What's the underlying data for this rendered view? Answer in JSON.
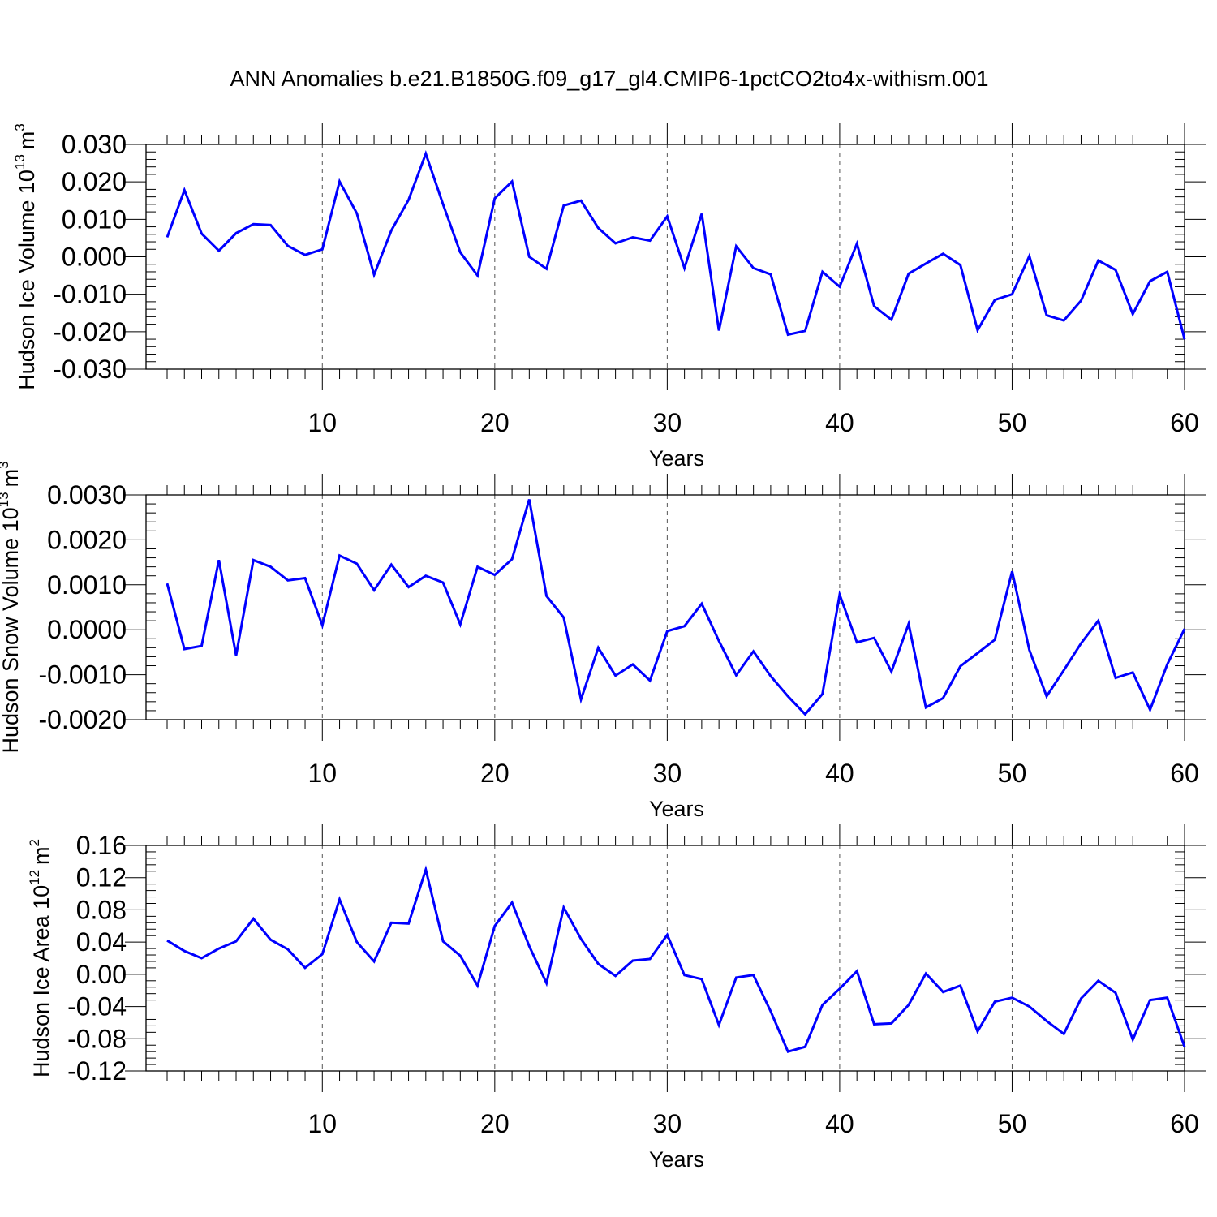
{
  "title": "ANN Anomalies b.e21.B1850G.f09_g17_gl4.CMIP6-1pctCO2to4x-withism.001",
  "style": {
    "line_color": "#0000ff",
    "axis_color": "#000000",
    "grid_color": "#555555"
  },
  "chart_data": [
    {
      "type": "line",
      "ylabel_main": "Hudson Ice Volume 10",
      "ylabel_exp": "13",
      "ylabel_unit": "m",
      "ylabel_unit_exp": "3",
      "xlabel": "Years",
      "xlim": [
        1,
        60
      ],
      "ylim": [
        -0.03,
        0.03
      ],
      "x_ticks": [
        10,
        20,
        30,
        40,
        50,
        60
      ],
      "x_tick_labels": [
        "10",
        "20",
        "30",
        "40",
        "50",
        "60"
      ],
      "y_ticks": [
        -0.03,
        -0.02,
        -0.01,
        0.0,
        0.01,
        0.02,
        0.03
      ],
      "y_tick_labels": [
        "-0.030",
        "-0.020",
        "-0.010",
        "0.000",
        "0.010",
        "0.020",
        "0.030"
      ],
      "grid": "vertical dashed at major x ticks",
      "series": [
        {
          "x": [
            1,
            2,
            3,
            4,
            5,
            6,
            7,
            8,
            9,
            10,
            11,
            12,
            13,
            14,
            15,
            16,
            17,
            18,
            19,
            20,
            21,
            22,
            23,
            24,
            25,
            26,
            27,
            28,
            29,
            30,
            31,
            32,
            33,
            34,
            35,
            36,
            37,
            38,
            39,
            40,
            41,
            42,
            43,
            44,
            45,
            46,
            47,
            48,
            49,
            50,
            51,
            52,
            53,
            54,
            55,
            56,
            57,
            58,
            59,
            60
          ],
          "values": [
            0.0052,
            0.0178,
            0.0062,
            0.0016,
            0.0063,
            0.0087,
            0.0085,
            0.0029,
            0.0005,
            0.002,
            0.0201,
            0.0116,
            -0.0048,
            0.007,
            0.0152,
            0.0275,
            0.014,
            0.0012,
            -0.005,
            0.0156,
            0.0201,
            0.0,
            -0.0032,
            0.0137,
            0.015,
            0.0077,
            0.0036,
            0.0052,
            0.0043,
            0.0108,
            -0.003,
            0.0115,
            -0.0197,
            0.0028,
            -0.003,
            -0.0047,
            -0.0208,
            -0.0198,
            -0.004,
            -0.008,
            0.0035,
            -0.0132,
            -0.0168,
            -0.0045,
            -0.0018,
            0.0008,
            -0.0022,
            -0.0196,
            -0.0115,
            -0.01,
            0.0002,
            -0.0156,
            -0.017,
            -0.0117,
            -0.001,
            -0.0035,
            -0.0153,
            -0.0065,
            -0.004,
            -0.022
          ]
        }
      ]
    },
    {
      "type": "line",
      "ylabel_main": "Hudson Snow Volume 10",
      "ylabel_exp": "13",
      "ylabel_unit": "m",
      "ylabel_unit_exp": "3",
      "xlabel": "Years",
      "xlim": [
        1,
        60
      ],
      "ylim": [
        -0.002,
        0.003
      ],
      "x_ticks": [
        10,
        20,
        30,
        40,
        50,
        60
      ],
      "x_tick_labels": [
        "10",
        "20",
        "30",
        "40",
        "50",
        "60"
      ],
      "y_ticks": [
        -0.002,
        -0.001,
        0.0,
        0.001,
        0.002,
        0.003
      ],
      "y_tick_labels": [
        "-0.0020",
        "-0.0010",
        "0.0000",
        "0.0010",
        "0.0020",
        "0.0030"
      ],
      "grid": "vertical dashed at major x ticks",
      "series": [
        {
          "x": [
            1,
            2,
            3,
            4,
            5,
            6,
            7,
            8,
            9,
            10,
            11,
            12,
            13,
            14,
            15,
            16,
            17,
            18,
            19,
            20,
            21,
            22,
            23,
            24,
            25,
            26,
            27,
            28,
            29,
            30,
            31,
            32,
            33,
            34,
            35,
            36,
            37,
            38,
            39,
            40,
            41,
            42,
            43,
            44,
            45,
            46,
            47,
            48,
            49,
            50,
            51,
            52,
            53,
            54,
            55,
            56,
            57,
            58,
            59,
            60
          ],
          "values": [
            0.00103,
            -0.00043,
            -0.00036,
            0.00155,
            -0.00057,
            0.00155,
            0.0014,
            0.0011,
            0.00115,
            0.0001,
            0.00165,
            0.00147,
            0.00088,
            0.00145,
            0.00095,
            0.0012,
            0.00105,
            0.00012,
            0.0014,
            0.00122,
            0.00157,
            0.0029,
            0.00075,
            0.00027,
            -0.00155,
            -0.0004,
            -0.00102,
            -0.00077,
            -0.00113,
            -3e-05,
            8e-05,
            0.00058,
            -0.00025,
            -0.00101,
            -0.00048,
            -0.00103,
            -0.00148,
            -0.00188,
            -0.00143,
            0.00078,
            -0.00028,
            -0.00018,
            -0.00093,
            0.00013,
            -0.00173,
            -0.00152,
            -0.00081,
            -0.00052,
            -0.00022,
            0.0013,
            -0.00045,
            -0.00148,
            -0.0009,
            -0.0003,
            0.0002,
            -0.00107,
            -0.00095,
            -0.00178,
            -0.00077,
            2e-05
          ]
        }
      ]
    },
    {
      "type": "line",
      "ylabel_main": "Hudson Ice Area 10",
      "ylabel_exp": "12",
      "ylabel_unit": "m",
      "ylabel_unit_exp": "2",
      "xlabel": "Years",
      "xlim": [
        1,
        60
      ],
      "ylim": [
        -0.12,
        0.16
      ],
      "x_ticks": [
        10,
        20,
        30,
        40,
        50,
        60
      ],
      "x_tick_labels": [
        "10",
        "20",
        "30",
        "40",
        "50",
        "60"
      ],
      "y_ticks": [
        -0.12,
        -0.08,
        -0.04,
        0.0,
        0.04,
        0.08,
        0.12,
        0.16
      ],
      "y_tick_labels": [
        "-0.12",
        "-0.08",
        "-0.04",
        "0.00",
        "0.04",
        "0.08",
        "0.12",
        "0.16"
      ],
      "grid": "vertical dashed at major x ticks",
      "series": [
        {
          "x": [
            1,
            2,
            3,
            4,
            5,
            6,
            7,
            8,
            9,
            10,
            11,
            12,
            13,
            14,
            15,
            16,
            17,
            18,
            19,
            20,
            21,
            22,
            23,
            24,
            25,
            26,
            27,
            28,
            29,
            30,
            31,
            32,
            33,
            34,
            35,
            36,
            37,
            38,
            39,
            40,
            41,
            42,
            43,
            44,
            45,
            46,
            47,
            48,
            49,
            50,
            51,
            52,
            53,
            54,
            55,
            56,
            57,
            58,
            59,
            60
          ],
          "values": [
            0.042,
            0.029,
            0.02,
            0.032,
            0.041,
            0.069,
            0.043,
            0.031,
            0.008,
            0.025,
            0.093,
            0.04,
            0.016,
            0.064,
            0.063,
            0.13,
            0.041,
            0.023,
            -0.014,
            0.06,
            0.089,
            0.035,
            -0.011,
            0.083,
            0.044,
            0.013,
            -0.002,
            0.017,
            0.019,
            0.049,
            -0.001,
            -0.006,
            -0.063,
            -0.004,
            -0.001,
            -0.046,
            -0.096,
            -0.09,
            -0.038,
            -0.018,
            0.004,
            -0.062,
            -0.061,
            -0.038,
            0.001,
            -0.022,
            -0.014,
            -0.071,
            -0.034,
            -0.029,
            -0.04,
            -0.058,
            -0.074,
            -0.03,
            -0.008,
            -0.023,
            -0.081,
            -0.032,
            -0.029,
            -0.09
          ]
        }
      ]
    }
  ]
}
